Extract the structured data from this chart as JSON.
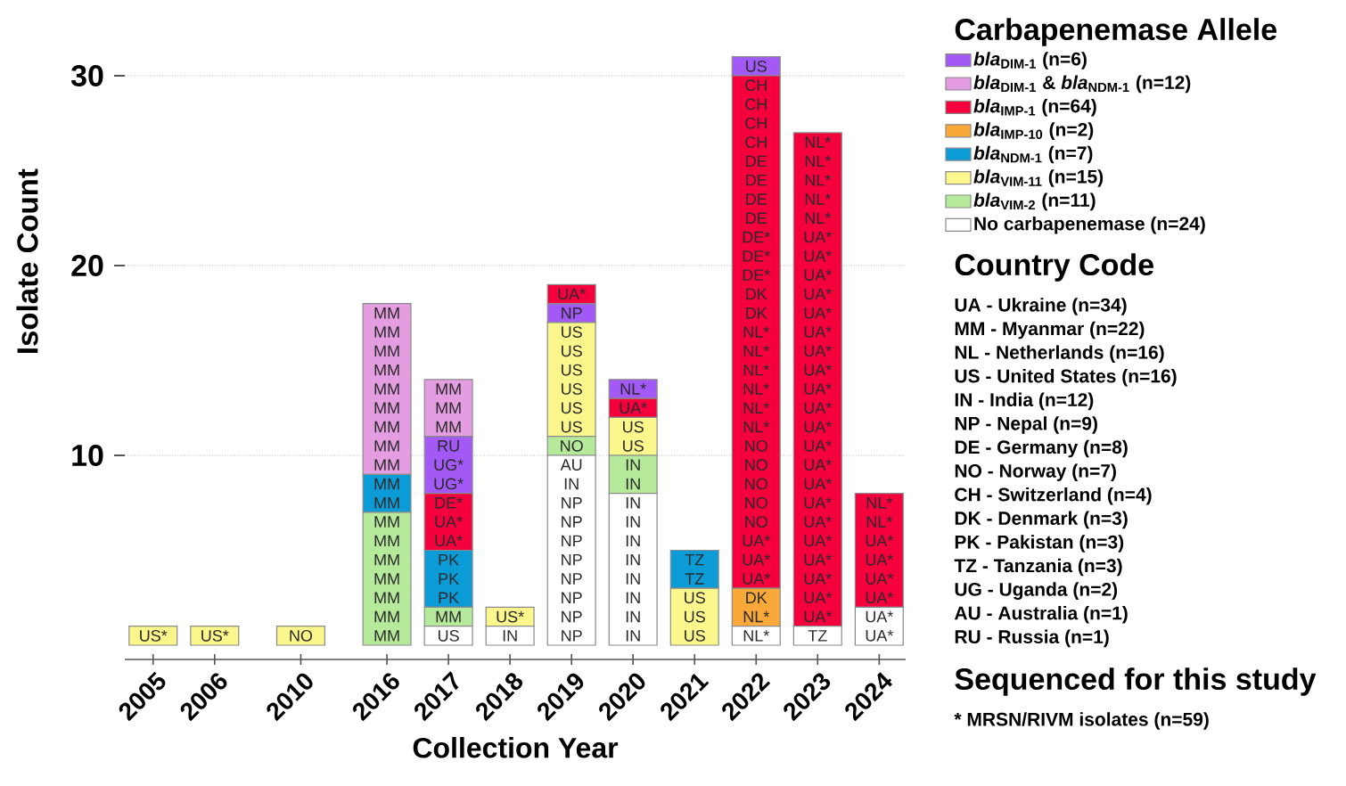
{
  "chart_data": {
    "type": "bar",
    "xlabel": "Collection Year",
    "ylabel": "Isolate Count",
    "legend_title": "Carbapenemase Allele",
    "categories": [
      "2005",
      "2006",
      "2010",
      "2016",
      "2017",
      "2018",
      "2019",
      "2020",
      "2021",
      "2022",
      "2023",
      "2024"
    ],
    "series": [
      {
        "name": "*bla*$_{DIM-1}$ (n=6)",
        "color": "#a259f5",
        "values": [
          null,
          null,
          null,
          null,
          3,
          null,
          1,
          1,
          null,
          1,
          null,
          null
        ],
        "base": [
          null,
          null,
          null,
          null,
          8,
          null,
          17,
          13,
          null,
          30,
          null,
          null
        ]
      },
      {
        "name": "*bla*$_{DIM-1}$ & *bla*$_{NDM-1}$ (n=12)",
        "color": "#e49de0",
        "values": [
          null,
          null,
          null,
          9,
          3,
          null,
          null,
          null,
          null,
          null,
          null,
          null
        ],
        "base": [
          null,
          null,
          null,
          9,
          11,
          null,
          null,
          null,
          null,
          null,
          null,
          null
        ]
      },
      {
        "name": "*bla*$_{IMP-1}$ (n=64)",
        "color": "#f5003c",
        "values": [
          null,
          null,
          null,
          null,
          3,
          null,
          1,
          1,
          null,
          27,
          26,
          6
        ],
        "base": [
          null,
          null,
          null,
          null,
          5,
          null,
          18,
          12,
          null,
          3,
          1,
          2
        ]
      },
      {
        "name": "*bla*$_{IMP-10}$ (n=2)",
        "color": "#f9a93a",
        "values": [
          null,
          null,
          null,
          null,
          null,
          null,
          null,
          null,
          null,
          2,
          null,
          null
        ],
        "base": [
          null,
          null,
          null,
          null,
          null,
          null,
          null,
          null,
          null,
          1,
          null,
          null
        ]
      },
      {
        "name": "*bla*$_{NDM-1}$ (n=7)",
        "color": "#0b9bd6",
        "values": [
          null,
          null,
          null,
          2,
          3,
          null,
          null,
          null,
          2,
          null,
          null,
          null
        ],
        "base": [
          null,
          null,
          null,
          7,
          2,
          null,
          null,
          null,
          3,
          null,
          null,
          null
        ]
      },
      {
        "name": "*bla*$_{VIM-11}$ (n=15)",
        "color": "#fbf78c",
        "values": [
          1,
          1,
          1,
          null,
          null,
          1,
          6,
          2,
          3,
          null,
          null,
          null
        ],
        "base": [
          0,
          0,
          0,
          null,
          null,
          1,
          11,
          10,
          0,
          null,
          null,
          null
        ]
      },
      {
        "name": "*bla*$_{VIM-2}$ (n=11)",
        "color": "#b5ea9b",
        "values": [
          null,
          null,
          null,
          7,
          1,
          null,
          1,
          2,
          null,
          null,
          null,
          null
        ],
        "base": [
          null,
          null,
          null,
          0,
          1,
          null,
          10,
          8,
          null,
          null,
          null,
          null
        ]
      },
      {
        "name": "No carbapenemase (n=24)",
        "color": "#ffffff",
        "values": [
          null,
          null,
          null,
          null,
          1,
          1,
          10,
          8,
          null,
          1,
          1,
          2
        ],
        "base": [
          null,
          null,
          null,
          null,
          0,
          0,
          0,
          0,
          null,
          0,
          0,
          0
        ]
      }
    ],
    "ylim": [
      -0.75,
      31
    ],
    "yticks": [
      10,
      20,
      30
    ],
    "grid": "y",
    "legend": "right",
    "annotations": [
      "US*",
      "US*",
      "NO",
      "MM",
      "MM",
      "MM",
      "MM",
      "MM",
      "MM",
      "MM",
      "MM",
      "MM",
      "MM",
      "MM",
      "MM",
      "MM",
      "MM",
      "MM",
      "MM",
      "MM",
      "MM",
      "US",
      "MM",
      "PK",
      "PK",
      "PK",
      "UA*",
      "UA*",
      "DE*",
      "UG*",
      "UG*",
      "RU",
      "MM",
      "MM",
      "MM",
      "IN",
      "US*",
      "NP",
      "NP",
      "NP",
      "NP",
      "NP",
      "NP",
      "NP",
      "NP",
      "IN",
      "AU",
      "NO",
      "US",
      "US",
      "US",
      "US",
      "US",
      "US",
      "NP",
      "UA*",
      "IN",
      "IN",
      "IN",
      "IN",
      "IN",
      "IN",
      "IN",
      "IN",
      "IN",
      "IN",
      "US",
      "US",
      "UA*",
      "NL*",
      "US",
      "US",
      "US",
      "TZ",
      "TZ",
      "NL*",
      "NL*",
      "DK",
      "UA*",
      "UA*",
      "UA*",
      "NO",
      "NO",
      "NO",
      "NO",
      "NO",
      "NL*",
      "NL*",
      "NL*",
      "NL*",
      "NL*",
      "NL*",
      "DK",
      "DK",
      "DE*",
      "DE*",
      "DE*",
      "DE",
      "DE",
      "DE",
      "DE",
      "CH",
      "CH",
      "CH",
      "CH",
      "US",
      "TZ",
      "UA*",
      "UA*",
      "UA*",
      "UA*",
      "UA*",
      "UA*",
      "UA*",
      "UA*",
      "UA*",
      "UA*",
      "UA*",
      "UA*",
      "UA*",
      "UA*",
      "UA*",
      "UA*",
      "UA*",
      "UA*",
      "UA*",
      "UA*",
      "UA*",
      "NL*",
      "NL*",
      "NL*",
      "NL*",
      "NL*",
      "UA*",
      "UA*",
      "UA*",
      "UA*",
      "UA*",
      "UA*",
      "NL*",
      "NL*",
      "Country Code",
      "UA - Ukraine (n=34)",
      "MM - Myanmar (n=22)",
      "NL - Netherlands (n=16)",
      "US - United States (n=16)",
      "IN - India (n=12)",
      "NP - Nepal (n=9)",
      "DE - Germany (n=8)",
      "NO - Norway (n=7)",
      "CH - Switzerland (n=4)",
      "DK - Denmark (n=3)",
      "PK - Pakistan (n=3)",
      "TZ - Tanzania (n=3)",
      "UG - Uganda (n=2)",
      "AU - Australia (n=1)",
      "RU - Russia (n=1)",
      "Sequenced for this study",
      "* MRSN/RIVM isolates (n=59)"
    ]
  }
}
